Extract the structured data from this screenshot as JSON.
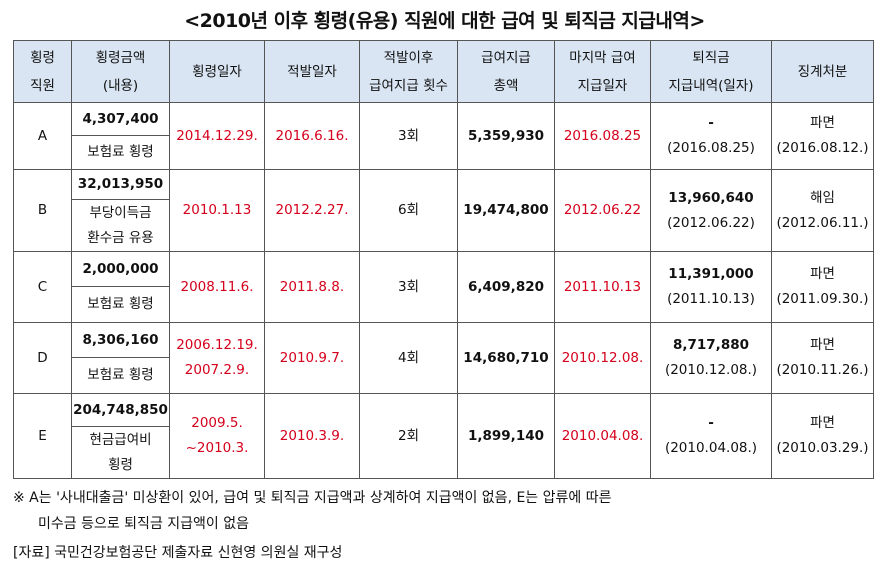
{
  "title": "<2010년 이후 횡령(유용) 직원에 대한 급여 및 퇴직금 지급내역>",
  "headers": {
    "employee": [
      "횡령",
      "직원"
    ],
    "amount": [
      "횡령금액",
      "(내용)"
    ],
    "embezzle_date": "횡령일자",
    "detect_date": "적발일자",
    "pay_count": [
      "적발이후",
      "급여지급 횟수"
    ],
    "total_pay": [
      "급여지급",
      "총액"
    ],
    "last_pay": [
      "마지막 급여",
      "지급일자"
    ],
    "severance": [
      "퇴직금",
      "지급내역(일자)"
    ],
    "discipline": "징계처분"
  },
  "rows": [
    {
      "employee": "A",
      "amount": "4,307,400",
      "content": "보험료 횡령",
      "embezzle_date": "2014.12.29.",
      "detect_date": "2016.6.16.",
      "pay_count": "3회",
      "total_pay": "5,359,930",
      "last_pay": "2016.08.25",
      "severance_amount": "-",
      "severance_date": "(2016.08.25)",
      "discipline": "파면",
      "discipline_date": "(2016.08.12.)"
    },
    {
      "employee": "B",
      "amount": "32,013,950",
      "content": "부당이득금 환수금 유용",
      "content_lines": [
        "부당이득금",
        "환수금 유용"
      ],
      "embezzle_date": "2010.1.13",
      "detect_date": "2012.2.27.",
      "pay_count": "6회",
      "total_pay": "19,474,800",
      "last_pay": "2012.06.22",
      "severance_amount": "13,960,640",
      "severance_date": "(2012.06.22)",
      "discipline": "해임",
      "discipline_date": "(2012.06.11.)"
    },
    {
      "employee": "C",
      "amount": "2,000,000",
      "content": "보험료 횡령",
      "embezzle_date": "2008.11.6.",
      "detect_date": "2011.8.8.",
      "pay_count": "3회",
      "total_pay": "6,409,820",
      "last_pay": "2011.10.13",
      "severance_amount": "11,391,000",
      "severance_date": "(2011.10.13)",
      "discipline": "파면",
      "discipline_date": "(2011.09.30.)"
    },
    {
      "employee": "D",
      "amount": "8,306,160",
      "content": "보험료 횡령",
      "embezzle_date_lines": [
        "2006.12.19.",
        "2007.2.9."
      ],
      "detect_date": "2010.9.7.",
      "pay_count": "4회",
      "total_pay": "14,680,710",
      "last_pay": "2010.12.08.",
      "severance_amount": "8,717,880",
      "severance_date": "(2010.12.08.)",
      "discipline": "파면",
      "discipline_date": "(2010.11.26.)"
    },
    {
      "employee": "E",
      "amount": "204,748,850",
      "content_lines": [
        "현금급여비",
        "횡령"
      ],
      "embezzle_date_lines": [
        "2009.5.",
        "~2010.3."
      ],
      "detect_date": "2010.3.9.",
      "pay_count": "2회",
      "total_pay": "1,899,140",
      "last_pay": "2010.04.08.",
      "severance_amount": "-",
      "severance_date": "(2010.04.08.)",
      "discipline": "파면",
      "discipline_date": "(2010.03.29.)"
    }
  ],
  "notes": {
    "line1": "※ A는 '사내대출금' 미상환이 있어, 급여 및 퇴직금 지급액과 상계하여 지급액이 없음, E는 압류에 따른",
    "line2": "미수금 등으로 퇴직금 지급액이 없음",
    "source": "[자료] 국민건강보험공단 제출자료 신현영 의원실 재구성"
  },
  "colors": {
    "header_bg": "#d9e5f2",
    "date_red": "#d5001c"
  }
}
